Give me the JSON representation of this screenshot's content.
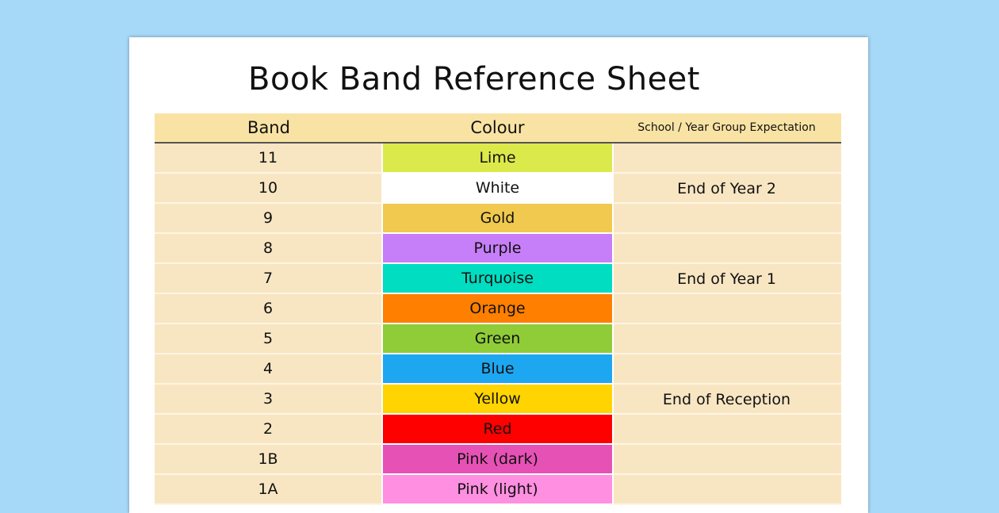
{
  "title": "Book Band Reference Sheet",
  "headers": {
    "band": "Band",
    "colour": "Colour",
    "expectation": "School / Year Group Expectation"
  },
  "rows": [
    {
      "band": "11",
      "colour": "Lime",
      "color_hex": "#dce94a"
    },
    {
      "band": "10",
      "colour": "White",
      "color_hex": "#ffffff"
    },
    {
      "band": "9",
      "colour": "Gold",
      "color_hex": "#f0c94e"
    },
    {
      "band": "8",
      "colour": "Purple",
      "color_hex": "#c67ff8"
    },
    {
      "band": "7",
      "colour": "Turquoise",
      "color_hex": "#00ddc0"
    },
    {
      "band": "6",
      "colour": "Orange",
      "color_hex": "#ff7f00"
    },
    {
      "band": "5",
      "colour": "Green",
      "color_hex": "#8fcc38"
    },
    {
      "band": "4",
      "colour": "Blue",
      "color_hex": "#1ea7f1"
    },
    {
      "band": "3",
      "colour": "Yellow",
      "color_hex": "#ffd400"
    },
    {
      "band": "2",
      "colour": "Red",
      "color_hex": "#ff0000"
    },
    {
      "band": "1B",
      "colour": "Pink (dark)",
      "color_hex": "#e651b6"
    },
    {
      "band": "1A",
      "colour": "Pink (light)",
      "color_hex": "#ff8fe0"
    }
  ],
  "expectations": [
    {
      "label": "End of Year 2",
      "row": 2
    },
    {
      "label": "End of Year 1",
      "row": 5
    },
    {
      "label": "End of Reception",
      "row": 9
    }
  ]
}
